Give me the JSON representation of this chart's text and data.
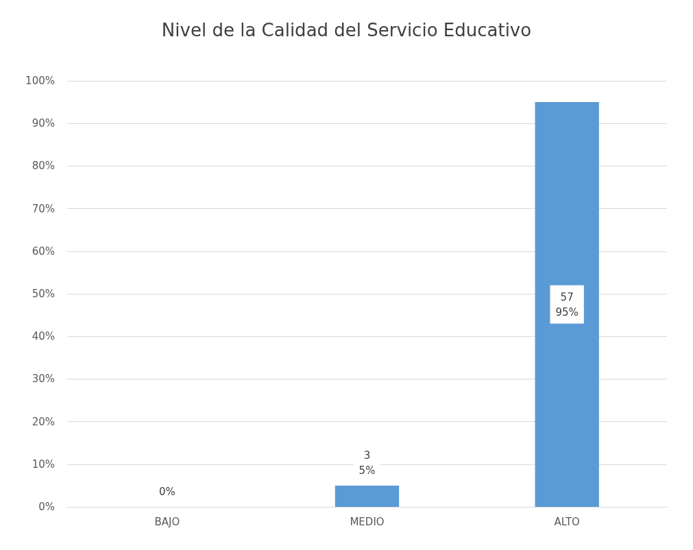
{
  "chart_data": {
    "type": "bar",
    "title": "Nivel de la Calidad del Servicio Educativo",
    "categories": [
      "BAJO",
      "MEDIO",
      "ALTO"
    ],
    "values": [
      0,
      5,
      95
    ],
    "value_labels": [
      "0%",
      "3\n5%",
      "57\n95%"
    ],
    "color": "#5b9bd5",
    "ylim": [
      0,
      100
    ],
    "yticks": [
      {
        "value": 0,
        "label": "0%"
      },
      {
        "value": 10,
        "label": "10%"
      },
      {
        "value": 20,
        "label": "20%"
      },
      {
        "value": 30,
        "label": "30%"
      },
      {
        "value": 40,
        "label": "40%"
      },
      {
        "value": 50,
        "label": "50%"
      },
      {
        "value": 60,
        "label": "60%"
      },
      {
        "value": 70,
        "label": "70%"
      },
      {
        "value": 80,
        "label": "80%"
      },
      {
        "value": 90,
        "label": "90%"
      },
      {
        "value": 100,
        "label": "100%"
      }
    ],
    "grid": "y"
  }
}
